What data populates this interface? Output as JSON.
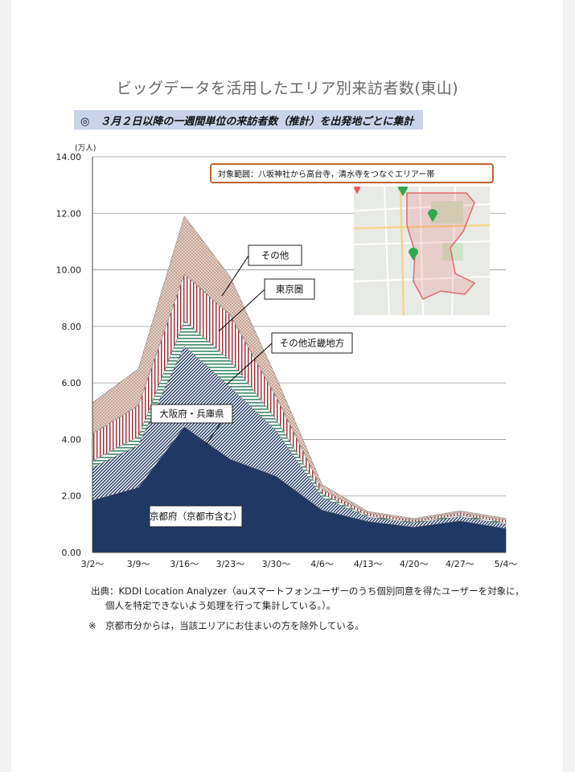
{
  "title": "ビッグデータを活用したエリア別来訪者数(東山)",
  "subtitle": "◎　３月２日以降の一週間単位の来訪者数（推計）を出発地ごとに集計",
  "chart_data": {
    "type": "area",
    "stacked": true,
    "unit_label": "(万人)",
    "ylim": [
      0,
      14
    ],
    "yticks": [
      "0.00",
      "2.00",
      "4.00",
      "6.00",
      "8.00",
      "10.00",
      "12.00",
      "14.00"
    ],
    "categories": [
      "3/2〜",
      "3/9〜",
      "3/16〜",
      "3/23〜",
      "3/30〜",
      "4/6〜",
      "4/13〜",
      "4/20〜",
      "4/27〜",
      "5/4〜"
    ],
    "series": [
      {
        "name": "京都府（京都市含む）",
        "color": "#1f3864",
        "pattern": "solid",
        "values": [
          1.85,
          2.3,
          4.45,
          3.3,
          2.7,
          1.5,
          1.1,
          0.9,
          1.12,
          0.85
        ]
      },
      {
        "name": "大阪府・兵庫県",
        "color": "#1f3864",
        "pattern": "hatch-dense",
        "values": [
          1.15,
          1.5,
          2.85,
          2.55,
          1.6,
          0.45,
          0.15,
          0.14,
          0.15,
          0.15
        ]
      },
      {
        "name": "その他近畿地方",
        "color": "#3c8c6a",
        "pattern": "horizontal-stripes",
        "values": [
          0.25,
          0.3,
          0.9,
          0.95,
          0.4,
          0.12,
          0.05,
          0.04,
          0.05,
          0.06
        ]
      },
      {
        "name": "東京圏",
        "color": "#a0282e",
        "pattern": "vertical-stripes",
        "values": [
          0.95,
          1.1,
          1.65,
          1.6,
          0.8,
          0.15,
          0.08,
          0.06,
          0.08,
          0.08
        ]
      },
      {
        "name": "その他",
        "color": "#c9a594",
        "pattern": "dots",
        "values": [
          1.1,
          1.3,
          2.05,
          1.35,
          0.7,
          0.18,
          0.07,
          0.06,
          0.07,
          0.07
        ]
      }
    ],
    "annotation": "対象範囲：八坂神社から高台寺，清水寺をつなぐエリアー帯"
  },
  "source_line1": "出典：KDDI Location Analyzer（auスマートフォンユーザーのうち個別同意を得たユーザーを対象に，",
  "source_line2": "個人を特定できないよう処理を行って集計している。）。",
  "note": "※　京都市分からは，当該エリアにお住まいの方を除外している。"
}
